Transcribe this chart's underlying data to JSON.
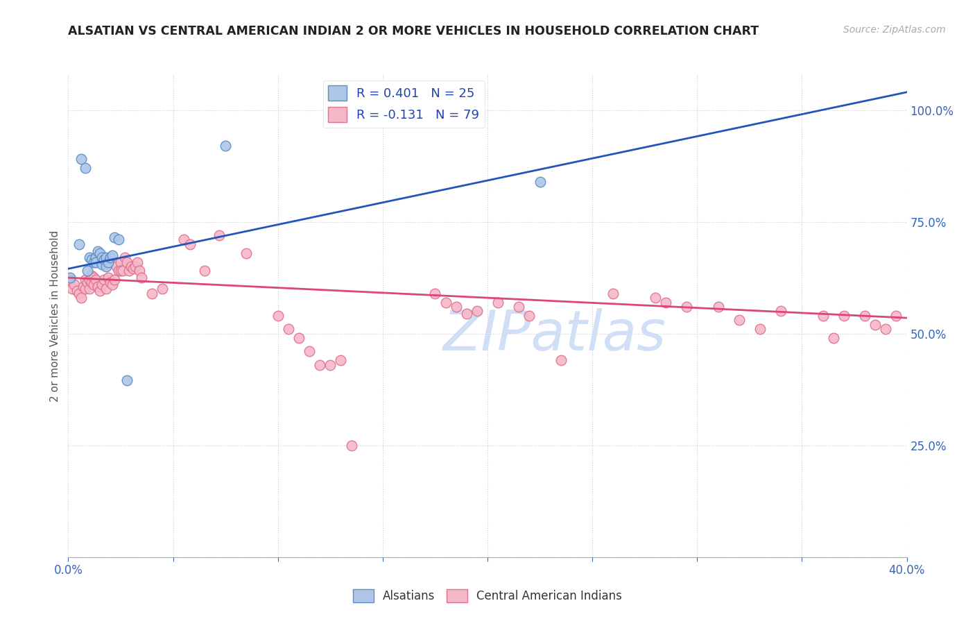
{
  "title": "ALSATIAN VS CENTRAL AMERICAN INDIAN 2 OR MORE VEHICLES IN HOUSEHOLD CORRELATION CHART",
  "source": "Source: ZipAtlas.com",
  "ylabel": "2 or more Vehicles in Household",
  "xlim": [
    0.0,
    0.4
  ],
  "ylim": [
    0.0,
    1.08
  ],
  "legend_blue_label": "R = 0.401   N = 25",
  "legend_pink_label": "R = -0.131   N = 79",
  "alsatian_color": "#aec6e8",
  "alsatian_edge_color": "#5b8ec4",
  "central_color": "#f5b8c8",
  "central_edge_color": "#e07090",
  "blue_line_color": "#2255bb",
  "pink_line_color": "#dd4477",
  "watermark_color": "#d0dff5",
  "blue_line_x": [
    0.0,
    0.4
  ],
  "blue_line_y": [
    0.645,
    1.04
  ],
  "pink_line_x": [
    0.0,
    0.4
  ],
  "pink_line_y": [
    0.625,
    0.535
  ],
  "alsatian_x": [
    0.001,
    0.005,
    0.006,
    0.008,
    0.009,
    0.01,
    0.011,
    0.012,
    0.013,
    0.013,
    0.014,
    0.015,
    0.016,
    0.016,
    0.017,
    0.018,
    0.018,
    0.019,
    0.02,
    0.021,
    0.022,
    0.024,
    0.028,
    0.075,
    0.225
  ],
  "alsatian_y": [
    0.625,
    0.7,
    0.89,
    0.87,
    0.64,
    0.67,
    0.665,
    0.66,
    0.67,
    0.66,
    0.685,
    0.68,
    0.67,
    0.655,
    0.665,
    0.67,
    0.65,
    0.66,
    0.67,
    0.675,
    0.715,
    0.71,
    0.395,
    0.92,
    0.84
  ],
  "central_x": [
    0.001,
    0.002,
    0.003,
    0.004,
    0.005,
    0.006,
    0.007,
    0.008,
    0.008,
    0.009,
    0.01,
    0.01,
    0.011,
    0.011,
    0.012,
    0.012,
    0.013,
    0.014,
    0.015,
    0.016,
    0.017,
    0.018,
    0.019,
    0.02,
    0.021,
    0.022,
    0.023,
    0.024,
    0.025,
    0.025,
    0.026,
    0.027,
    0.028,
    0.029,
    0.03,
    0.031,
    0.032,
    0.033,
    0.034,
    0.035,
    0.04,
    0.045,
    0.055,
    0.058,
    0.065,
    0.072,
    0.085,
    0.1,
    0.105,
    0.11,
    0.115,
    0.12,
    0.125,
    0.13,
    0.135,
    0.175,
    0.18,
    0.185,
    0.19,
    0.195,
    0.205,
    0.215,
    0.22,
    0.235,
    0.26,
    0.28,
    0.285,
    0.295,
    0.31,
    0.32,
    0.33,
    0.34,
    0.36,
    0.365,
    0.37,
    0.38,
    0.385,
    0.39,
    0.395
  ],
  "central_y": [
    0.62,
    0.6,
    0.61,
    0.595,
    0.59,
    0.58,
    0.605,
    0.6,
    0.62,
    0.615,
    0.62,
    0.6,
    0.63,
    0.615,
    0.625,
    0.61,
    0.62,
    0.605,
    0.595,
    0.61,
    0.62,
    0.6,
    0.625,
    0.615,
    0.61,
    0.62,
    0.65,
    0.64,
    0.66,
    0.64,
    0.64,
    0.67,
    0.66,
    0.64,
    0.65,
    0.645,
    0.65,
    0.66,
    0.64,
    0.625,
    0.59,
    0.6,
    0.71,
    0.7,
    0.64,
    0.72,
    0.68,
    0.54,
    0.51,
    0.49,
    0.46,
    0.43,
    0.43,
    0.44,
    0.25,
    0.59,
    0.57,
    0.56,
    0.545,
    0.55,
    0.57,
    0.56,
    0.54,
    0.44,
    0.59,
    0.58,
    0.57,
    0.56,
    0.56,
    0.53,
    0.51,
    0.55,
    0.54,
    0.49,
    0.54,
    0.54,
    0.52,
    0.51,
    0.54
  ]
}
